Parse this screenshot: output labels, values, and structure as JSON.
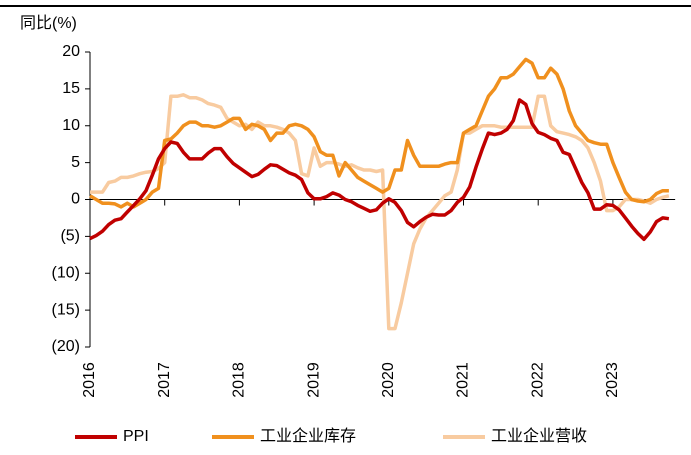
{
  "chart_data": {
    "type": "line",
    "ylabel": "同比(%)",
    "categories": [
      "2016",
      null,
      null,
      null,
      null,
      null,
      null,
      null,
      null,
      null,
      null,
      null,
      "2017",
      null,
      null,
      null,
      null,
      null,
      null,
      null,
      null,
      null,
      null,
      null,
      "2018",
      null,
      null,
      null,
      null,
      null,
      null,
      null,
      null,
      null,
      null,
      null,
      "2019",
      null,
      null,
      null,
      null,
      null,
      null,
      null,
      null,
      null,
      null,
      null,
      "2020",
      null,
      null,
      null,
      null,
      null,
      null,
      null,
      null,
      null,
      null,
      null,
      "2021",
      null,
      null,
      null,
      null,
      null,
      null,
      null,
      null,
      null,
      null,
      null,
      "2022",
      null,
      null,
      null,
      null,
      null,
      null,
      null,
      null,
      null,
      null,
      null,
      "2023",
      null,
      null,
      null,
      null,
      null,
      null,
      null,
      null,
      null
    ],
    "series": [
      {
        "name": "PPI",
        "color": "#c00000",
        "values": [
          -5.3,
          -4.9,
          -4.3,
          -3.4,
          -2.8,
          -2.6,
          -1.7,
          -0.8,
          0.1,
          1.2,
          3.3,
          5.5,
          6.9,
          7.8,
          7.6,
          6.4,
          5.5,
          5.5,
          5.5,
          6.3,
          6.9,
          6.9,
          5.8,
          4.9,
          4.3,
          3.7,
          3.1,
          3.4,
          4.1,
          4.7,
          4.6,
          4.1,
          3.6,
          3.3,
          2.7,
          0.9,
          0.1,
          0.1,
          0.4,
          0.9,
          0.6,
          0,
          -0.3,
          -0.8,
          -1.2,
          -1.6,
          -1.4,
          -0.5,
          0.1,
          -0.4,
          -1.5,
          -3.1,
          -3.7,
          -3.0,
          -2.4,
          -2.0,
          -2.1,
          -2.1,
          -1.5,
          -0.4,
          0.3,
          1.7,
          4.4,
          6.8,
          9.0,
          8.8,
          9.0,
          9.5,
          10.7,
          13.5,
          12.9,
          10.3,
          9.1,
          8.8,
          8.3,
          8.0,
          6.4,
          6.1,
          4.2,
          2.3,
          0.9,
          -1.3,
          -1.3,
          -0.7,
          -0.8,
          -1.4,
          -2.5,
          -3.6,
          -4.6,
          -5.4,
          -4.4,
          -3.0,
          -2.5,
          -2.6
        ]
      },
      {
        "name": "工业企业库存",
        "color": "#f0901e",
        "values": [
          0.5,
          0,
          -0.5,
          -0.5,
          -0.6,
          -1,
          -0.5,
          -1,
          -0.5,
          0,
          1,
          1.5,
          8,
          8.2,
          9,
          10,
          10.5,
          10.5,
          10,
          10,
          9.8,
          10,
          10.5,
          11,
          11,
          9.5,
          10.2,
          10,
          9.5,
          8,
          9,
          9,
          10,
          10.2,
          10,
          9.5,
          8.5,
          6.5,
          6,
          6,
          3.2,
          5,
          4,
          3,
          2.5,
          2,
          1.5,
          1,
          1.5,
          4,
          4,
          8,
          6,
          4.5,
          4.5,
          4.5,
          4.5,
          4.8,
          5,
          5,
          9,
          9.5,
          10,
          12,
          14,
          15,
          16.5,
          16.5,
          17,
          18,
          19,
          18.5,
          16.5,
          16.5,
          17.8,
          17,
          15,
          12,
          10,
          9,
          8,
          7.7,
          7.5,
          7.5,
          5,
          3,
          1,
          0,
          -0.2,
          -0.3,
          0,
          0.8,
          1.2,
          1.2
        ]
      },
      {
        "name": "工业企业营收",
        "color": "#f8cba0",
        "values": [
          1,
          1,
          1,
          2.3,
          2.5,
          3,
          3,
          3.2,
          3.5,
          3.7,
          3.8,
          4.2,
          5,
          14,
          14,
          14.2,
          13.8,
          13.8,
          13.5,
          13,
          12.8,
          12.5,
          11,
          10.5,
          10,
          10.2,
          9.5,
          10.5,
          10,
          10,
          9.8,
          9.5,
          9,
          8,
          3.5,
          3.2,
          7,
          4.5,
          5,
          5,
          4.8,
          4.5,
          4.7,
          4.3,
          4,
          4,
          3.8,
          4,
          -17.5,
          -17.5,
          -14,
          -10,
          -6,
          -4,
          -2.5,
          -1.5,
          -0.5,
          0.5,
          1,
          4,
          9,
          9,
          9.5,
          10,
          10,
          10,
          9.8,
          9.8,
          9.8,
          9.8,
          9.8,
          9.8,
          14,
          14,
          10,
          9.2,
          9,
          8.8,
          8.5,
          8,
          7,
          5,
          2.5,
          -1.5,
          -1.5,
          -1,
          0,
          0,
          0,
          -0.2,
          -0.5,
          0,
          0.3,
          0.5
        ]
      }
    ],
    "ylim": [
      -20,
      20
    ],
    "yticks": [
      20,
      15,
      10,
      5,
      0,
      {
        "value": -5,
        "label": "(5)"
      },
      {
        "value": -10,
        "label": "(10)"
      },
      {
        "value": -15,
        "label": "(15)"
      },
      {
        "value": -20,
        "label": "(20)"
      }
    ],
    "negative_tick_color": "#ff0000",
    "grid": false
  }
}
